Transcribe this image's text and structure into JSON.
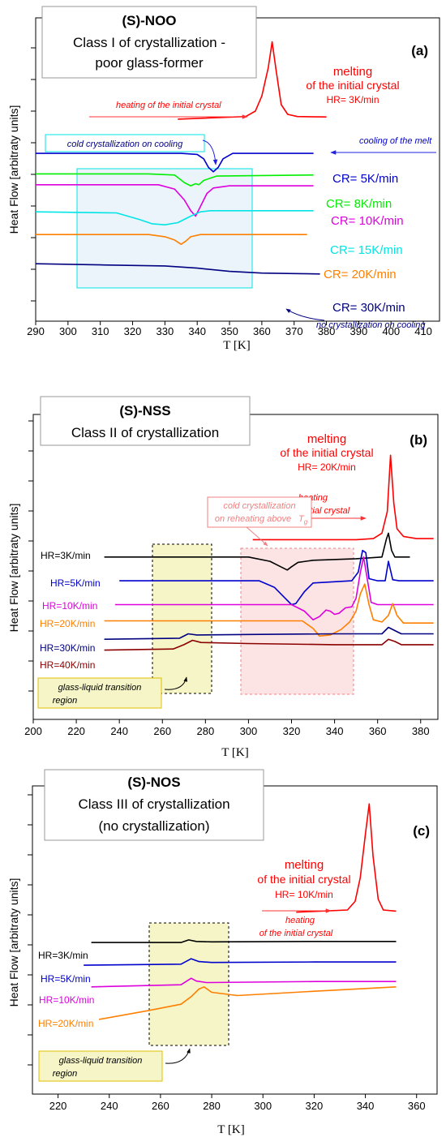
{
  "chart_data": [
    {
      "type": "line",
      "panel_label": "(a)",
      "compound": "(S)-NOO",
      "title_lines": [
        "(S)-NOO",
        "Class I of crystallization -",
        "poor glass-former"
      ],
      "xlabel": "T [K]",
      "ylabel": "Heat Flow [arbitraty units]",
      "xlim": [
        290,
        415
      ],
      "xticks": [
        290,
        300,
        310,
        320,
        330,
        340,
        350,
        360,
        370,
        380,
        390,
        400,
        410
      ],
      "series": [
        {
          "name": "HR= 3K/min",
          "color": "#ff0000",
          "x": [
            334,
            355,
            358,
            360,
            362,
            363.2,
            364.5,
            366,
            368,
            371,
            380
          ],
          "y": [
            9.33,
            9.45,
            9.7,
            10.4,
            11.7,
            12.9,
            11.5,
            10.0,
            9.55,
            9.45,
            9.43
          ]
        },
        {
          "name": "CR= 5K/min",
          "color": "#0000cc",
          "x": [
            290,
            335,
            340,
            342,
            343.5,
            345,
            346.5,
            348,
            351,
            360,
            376
          ],
          "y": [
            7.75,
            7.75,
            7.7,
            7.5,
            7.1,
            6.9,
            7.1,
            7.5,
            7.75,
            7.75,
            7.75
          ]
        },
        {
          "name": "CR= 8K/min",
          "color": "#00ee00",
          "x": [
            290,
            325,
            333,
            336,
            338,
            339.5,
            340.5,
            342,
            344,
            346,
            376
          ],
          "y": [
            6.8,
            6.8,
            6.75,
            6.4,
            6.25,
            6.35,
            6.3,
            6.5,
            6.6,
            6.7,
            6.75
          ]
        },
        {
          "name": "CR= 10K/min",
          "color": "#dd00dd",
          "x": [
            290,
            328,
            333,
            336,
            338,
            339.5,
            341,
            343,
            345,
            350,
            376
          ],
          "y": [
            6.3,
            6.3,
            6.1,
            5.6,
            5.1,
            4.85,
            5.3,
            5.9,
            6.15,
            6.25,
            6.25
          ]
        },
        {
          "name": "CR= 15K/min",
          "color": "#00e5e5",
          "x": [
            290,
            315,
            322,
            326,
            330,
            334,
            338,
            341,
            344,
            350,
            376
          ],
          "y": [
            5.05,
            5.0,
            4.7,
            4.5,
            4.45,
            4.55,
            4.85,
            5.05,
            5.1,
            5.1,
            5.1
          ]
        },
        {
          "name": "CR= 20K/min",
          "color": "#ff7f00",
          "x": [
            290,
            325,
            330,
            333,
            335,
            336.5,
            338,
            341,
            346,
            360,
            374
          ],
          "y": [
            4.0,
            4.0,
            3.9,
            3.75,
            3.55,
            3.7,
            3.9,
            4.0,
            4.0,
            4.0,
            4.0
          ]
        },
        {
          "name": "CR= 30K/min",
          "color": "#000080",
          "x": [
            290,
            310,
            330,
            340,
            350,
            360,
            370,
            378
          ],
          "y": [
            2.65,
            2.6,
            2.55,
            2.45,
            2.3,
            2.22,
            2.2,
            2.18
          ]
        }
      ],
      "annotations": [
        "melting",
        "of the initial crystal",
        "heating of the initial crystal",
        "cold crystallization on cooling",
        "cooling of the melt",
        "no crystallization on cooling"
      ]
    },
    {
      "type": "line",
      "panel_label": "(b)",
      "compound": "(S)-NSS",
      "title_lines": [
        "(S)-NSS",
        "Class II of crystallization"
      ],
      "xlabel": "T [K]",
      "ylabel": "Heat Flow [arbitraty units]",
      "xlim": [
        200,
        388
      ],
      "xticks": [
        200,
        220,
        240,
        260,
        280,
        300,
        320,
        340,
        360,
        380
      ],
      "series": [
        {
          "name": "HR= 20K/min",
          "color": "#ff0000",
          "x": [
            302,
            350,
            358,
            362,
            364.5,
            366,
            367.5,
            369,
            372,
            378,
            386
          ],
          "y": [
            8.3,
            8.3,
            8.35,
            8.6,
            9.6,
            12.2,
            10.0,
            8.8,
            8.45,
            8.35,
            8.35
          ]
        },
        {
          "name": "HR=3K/min",
          "color": "#000000",
          "x": [
            233,
            300,
            310,
            315,
            318,
            320,
            323,
            330,
            350,
            362,
            364,
            365,
            366.5,
            368,
            375
          ],
          "y": [
            7.5,
            7.5,
            7.3,
            7.05,
            6.9,
            7.05,
            7.25,
            7.35,
            7.42,
            7.5,
            8.3,
            8.6,
            7.8,
            7.5,
            7.5
          ]
        },
        {
          "name": "HR=5K/min",
          "color": "#0000cc",
          "x": [
            240,
            305,
            312,
            316,
            320,
            322,
            326,
            330,
            348,
            351,
            353,
            354.5,
            356,
            360,
            363.5,
            365,
            367,
            370,
            386
          ],
          "y": [
            6.4,
            6.4,
            6.1,
            5.7,
            5.3,
            5.35,
            5.9,
            6.3,
            6.4,
            6.8,
            7.8,
            7.7,
            6.5,
            6.4,
            6.4,
            7.3,
            6.45,
            6.4,
            6.4
          ]
        },
        {
          "name": "HR=10K/min",
          "color": "#dd00dd",
          "x": [
            238,
            320,
            326,
            330,
            333,
            336,
            338,
            340,
            342,
            345,
            348,
            350,
            352,
            353.5,
            355,
            357,
            360,
            386
          ],
          "y": [
            5.3,
            5.3,
            5.0,
            4.6,
            4.75,
            5.05,
            5.0,
            4.85,
            4.9,
            5.15,
            5.2,
            5.6,
            6.8,
            7.5,
            6.6,
            5.4,
            5.3,
            5.3
          ]
        },
        {
          "name": "HR=20K/min",
          "color": "#ff7f00",
          "x": [
            233,
            325,
            330,
            333,
            338,
            343,
            347,
            350,
            352,
            354,
            356,
            358,
            362,
            365,
            367,
            369,
            372,
            386
          ],
          "y": [
            4.55,
            4.55,
            4.2,
            3.85,
            3.9,
            4.15,
            4.5,
            5.0,
            5.8,
            6.25,
            5.3,
            4.6,
            4.5,
            4.8,
            5.35,
            4.8,
            4.45,
            4.45
          ]
        },
        {
          "name": "HR=30K/min",
          "color": "#000080",
          "x": [
            233,
            268,
            272,
            276,
            300,
            340,
            362,
            365,
            368,
            371,
            386
          ],
          "y": [
            3.7,
            3.75,
            3.95,
            3.9,
            3.92,
            3.95,
            3.95,
            4.25,
            4.1,
            3.95,
            3.95
          ]
        },
        {
          "name": "HR=40K/min",
          "color": "#8b0000",
          "x": [
            233,
            265,
            270,
            274,
            278,
            300,
            340,
            362,
            365,
            368,
            371,
            386
          ],
          "y": [
            3.2,
            3.25,
            3.45,
            3.65,
            3.55,
            3.5,
            3.45,
            3.45,
            3.7,
            3.6,
            3.45,
            3.45
          ]
        }
      ],
      "annotations": [
        "melting",
        "of the initial crystal",
        "HR= 20K/min",
        "heating",
        "of the initial crystal",
        "cold crystallization",
        "on reheating above",
        "glass-liquid transition",
        "region"
      ]
    },
    {
      "type": "line",
      "panel_label": "(c)",
      "compound": "(S)-NOS",
      "title_lines": [
        "(S)-NOS",
        "Class III of crystallization",
        "(no crystallization)"
      ],
      "xlabel": "T [K]",
      "ylabel": "Heat Flow [arbitraty units]",
      "xlim": [
        210,
        368
      ],
      "xticks": [
        220,
        240,
        260,
        280,
        300,
        320,
        340,
        360
      ],
      "series": [
        {
          "name": "HR= 10K/min",
          "color": "#ff0000",
          "x": [
            313,
            333,
            336,
            338,
            340,
            341.5,
            343,
            345,
            347,
            352
          ],
          "y": [
            8.4,
            8.5,
            8.9,
            10.0,
            12.0,
            13.4,
            11.0,
            9.0,
            8.5,
            8.45
          ]
        },
        {
          "name": "HR=3K/min",
          "color": "#000000",
          "x": [
            233,
            268,
            271,
            274,
            280,
            320,
            352
          ],
          "y": [
            7.0,
            7.0,
            7.12,
            7.05,
            7.03,
            7.05,
            7.05
          ]
        },
        {
          "name": "HR=5K/min",
          "color": "#0000cc",
          "x": [
            230,
            268,
            272,
            275,
            280,
            320,
            352
          ],
          "y": [
            5.95,
            6.0,
            6.25,
            6.12,
            6.08,
            6.1,
            6.1
          ]
        },
        {
          "name": "HR=10K/min",
          "color": "#dd00dd",
          "x": [
            233,
            268,
            272,
            274,
            278,
            320,
            352
          ],
          "y": [
            4.95,
            5.05,
            5.35,
            5.22,
            5.15,
            5.2,
            5.2
          ]
        },
        {
          "name": "HR=20K/min",
          "color": "#ff7f00",
          "x": [
            236,
            255,
            268,
            272,
            275,
            277,
            280,
            290,
            320,
            352
          ],
          "y": [
            3.45,
            3.85,
            4.15,
            4.5,
            4.85,
            4.95,
            4.7,
            4.55,
            4.75,
            4.95
          ]
        }
      ],
      "annotations": [
        "melting",
        "of the initial crystal",
        "HR= 10K/min",
        "heating",
        "of the initial crystal",
        "glass-liquid transition",
        "region"
      ]
    }
  ]
}
